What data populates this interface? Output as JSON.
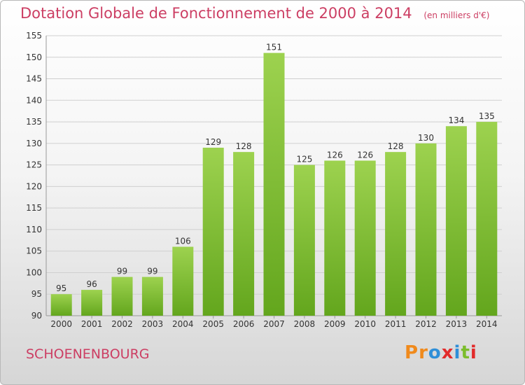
{
  "chart_data": {
    "type": "bar",
    "title": "Dotation Globale de Fonctionnement de 2000 à 2014",
    "unit": "(en milliers d'€)",
    "categories": [
      "2000",
      "2001",
      "2002",
      "2003",
      "2004",
      "2005",
      "2006",
      "2007",
      "2008",
      "2009",
      "2010",
      "2011",
      "2012",
      "2013",
      "2014"
    ],
    "values": [
      95,
      96,
      99,
      99,
      106,
      129,
      128,
      151,
      125,
      126,
      126,
      128,
      130,
      134,
      135
    ],
    "ylim": [
      90,
      155
    ],
    "yticks": [
      90,
      95,
      100,
      105,
      110,
      115,
      120,
      125,
      130,
      135,
      140,
      145,
      150,
      155
    ],
    "grid": true,
    "bar_color_top": "#9dd24f",
    "bar_color_bottom": "#63a61d"
  },
  "commune": "SCHOENENBOURG",
  "logo": {
    "text": "Proxiti",
    "letter_colors": [
      "#f08a1c",
      "#f08a1c",
      "#2f8fd8",
      "#e22b2b",
      "#2f8fd8",
      "#7cbd2c",
      "#e22b2b"
    ]
  }
}
